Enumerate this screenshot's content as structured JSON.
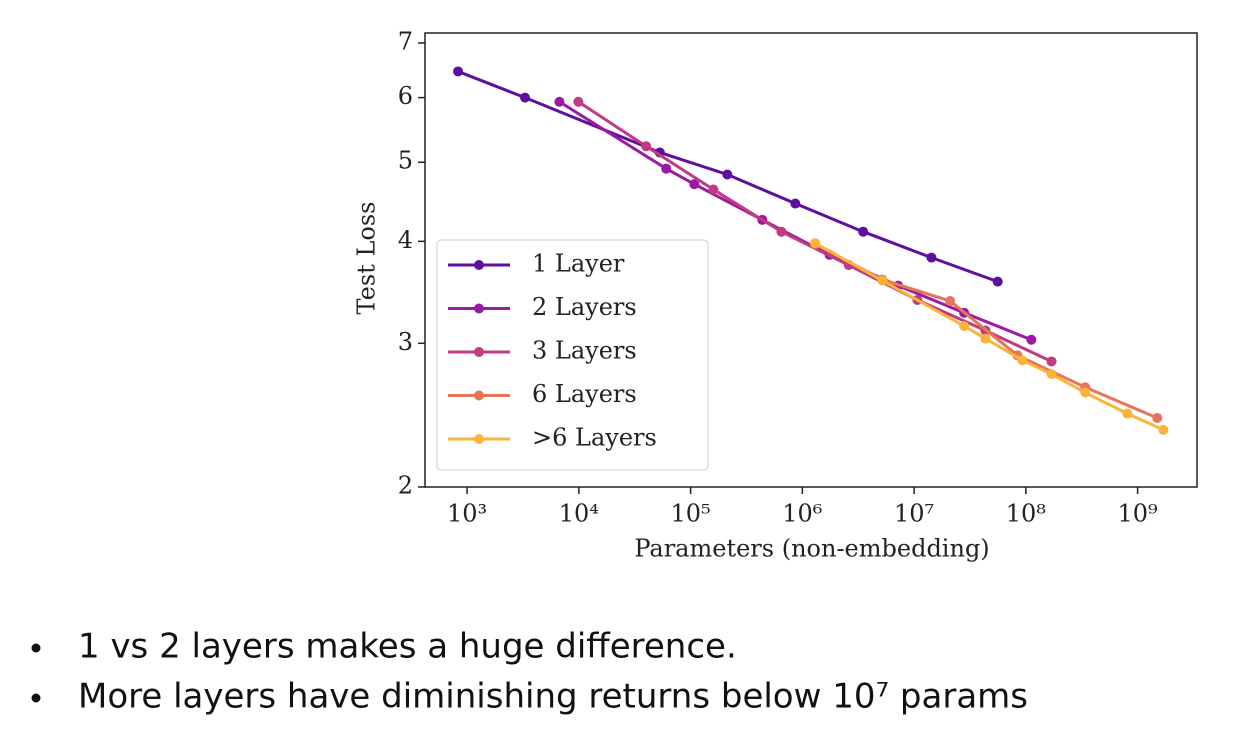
{
  "chart_data": {
    "type": "line",
    "xlabel": "Parameters (non-embedding)",
    "ylabel": "Test Loss",
    "xscale": "log",
    "yscale": "log",
    "xlim": [
      420,
      3400000000
    ],
    "ylim": [
      2,
      7.2
    ],
    "xticks": [
      {
        "value": 1000,
        "label": "10³"
      },
      {
        "value": 10000,
        "label": "10⁴"
      },
      {
        "value": 100000,
        "label": "10⁵"
      },
      {
        "value": 1000000,
        "label": "10⁶"
      },
      {
        "value": 10000000,
        "label": "10⁷"
      },
      {
        "value": 100000000,
        "label": "10⁸"
      },
      {
        "value": 1000000000,
        "label": "10⁹"
      }
    ],
    "yticks": [
      2,
      3,
      4,
      5,
      6,
      7
    ],
    "legend": "lower left",
    "series": [
      {
        "name": "1 Layer",
        "color": "#5d0fa1",
        "x": [
          830,
          3300,
          53000,
          213000,
          865000,
          3500000,
          14300000,
          56000000
        ],
        "values": [
          6.46,
          6.0,
          5.14,
          4.83,
          4.45,
          4.11,
          3.82,
          3.57
        ]
      },
      {
        "name": "2 Layers",
        "color": "#9a1aa4",
        "x": [
          6700,
          60500,
          108000,
          438000,
          1750000,
          7200000,
          28000000,
          112000000
        ],
        "values": [
          5.93,
          4.91,
          4.7,
          4.25,
          3.85,
          3.53,
          3.27,
          3.03
        ]
      },
      {
        "name": "3 Layers",
        "color": "#c23b82",
        "x": [
          9900,
          40000,
          160000,
          650000,
          2600000,
          10700000,
          43500000,
          170000000
        ],
        "values": [
          5.93,
          5.23,
          4.63,
          4.11,
          3.74,
          3.39,
          3.11,
          2.85
        ]
      },
      {
        "name": "6 Layers",
        "color": "#e8745a",
        "x": [
          1300000,
          5200000,
          21000000,
          84000000,
          340000000,
          1500000000
        ],
        "values": [
          3.97,
          3.59,
          3.38,
          2.9,
          2.65,
          2.43
        ]
      },
      {
        "name": ">6 Layers",
        "color": "#fbb43a",
        "x": [
          1300000,
          5200000,
          28000000,
          43500000,
          93000000,
          170000000,
          340000000,
          810000000,
          1700000000
        ],
        "values": [
          3.98,
          3.58,
          3.15,
          3.04,
          2.86,
          2.75,
          2.61,
          2.46,
          2.35
        ]
      }
    ]
  },
  "bullets": [
    "1 vs 2 layers makes a huge difference.",
    "More layers have diminishing returns below 10⁷ params"
  ]
}
